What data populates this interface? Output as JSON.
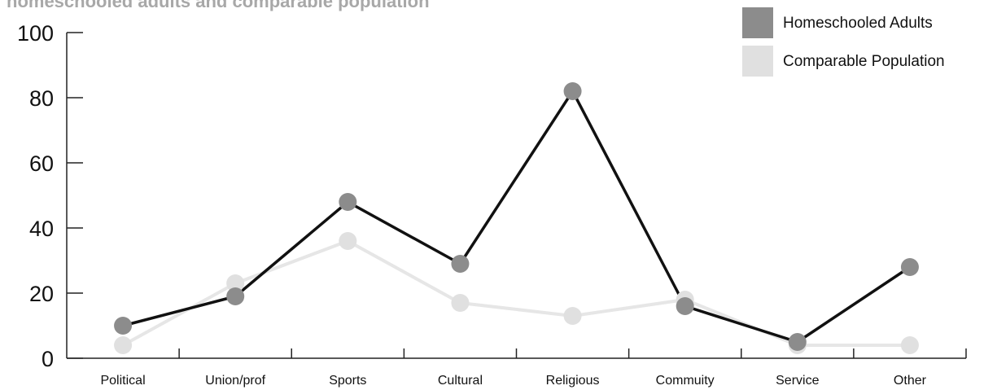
{
  "chart_data": {
    "type": "line",
    "title": "homeschooled adults and comparable population",
    "categories": [
      "Political",
      "Union/prof",
      "Sports",
      "Cultural",
      "Religious",
      "Commuity",
      "Service",
      "Other"
    ],
    "ylim": [
      0,
      100
    ],
    "yticks": [
      0,
      20,
      40,
      60,
      80,
      100
    ],
    "grid": false,
    "legend_position": "top-right",
    "series": [
      {
        "name": "Homeschooled Adults",
        "values": [
          10,
          19,
          48,
          29,
          82,
          16,
          5,
          28
        ],
        "line_color": "#111111",
        "marker_color": "#8c8c8c"
      },
      {
        "name": "Comparable Population",
        "values": [
          4,
          23,
          36,
          17,
          13,
          18,
          4,
          4
        ],
        "line_color": "#e6e6e6",
        "marker_color": "#e0e0e0"
      }
    ]
  }
}
